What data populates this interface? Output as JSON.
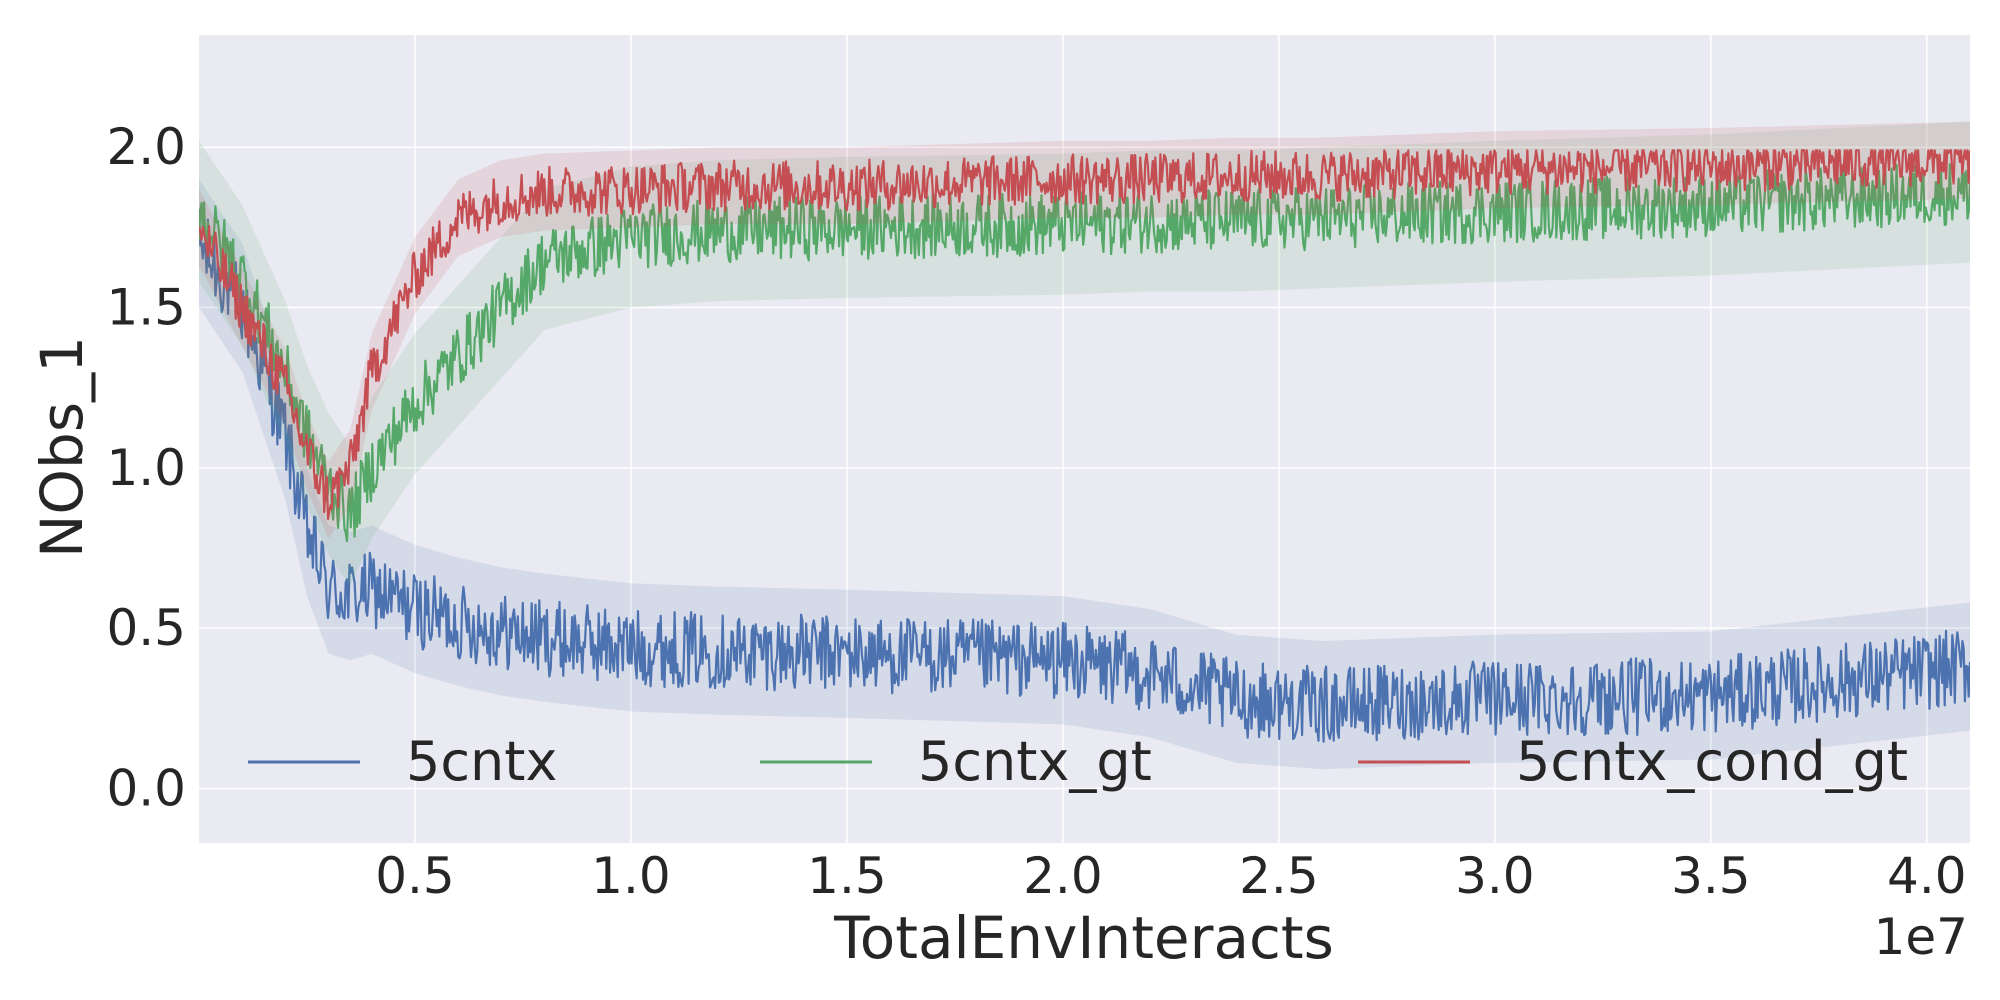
{
  "chart_data": {
    "type": "line",
    "xlabel": "TotalEnvInteracts",
    "ylabel": "NObs_1",
    "x_scale_label": "1e7",
    "xlim": [
      0.0,
      4.1
    ],
    "ylim": [
      -0.17,
      2.35
    ],
    "grid": true,
    "legend_position": "lower-center",
    "x_ticks": [
      0.5,
      1.0,
      1.5,
      2.0,
      2.5,
      3.0,
      3.5,
      4.0
    ],
    "x_tick_labels": [
      "0.5",
      "1.0",
      "1.5",
      "2.0",
      "2.5",
      "3.0",
      "3.5",
      "4.0"
    ],
    "y_ticks": [
      0.0,
      0.5,
      1.0,
      1.5,
      2.0
    ],
    "y_tick_labels": [
      "0.0",
      "0.5",
      "1.0",
      "1.5",
      "2.0"
    ],
    "x": [
      0.0,
      0.1,
      0.2,
      0.25,
      0.3,
      0.35,
      0.4,
      0.5,
      0.6,
      0.7,
      0.8,
      1.0,
      1.2,
      1.5,
      2.0,
      2.2,
      2.4,
      2.6,
      3.0,
      3.5,
      4.1
    ],
    "series": [
      {
        "name": "5cntx",
        "color": "#4c72b0",
        "values": [
          1.7,
          1.5,
          1.1,
          0.8,
          0.62,
          0.6,
          0.62,
          0.56,
          0.52,
          0.49,
          0.47,
          0.44,
          0.43,
          0.42,
          0.4,
          0.36,
          0.28,
          0.26,
          0.28,
          0.29,
          0.38
        ]
      },
      {
        "name": "5cntx_gt",
        "color": "#55a868",
        "values": [
          1.8,
          1.6,
          1.3,
          1.1,
          0.95,
          0.85,
          1.0,
          1.2,
          1.35,
          1.5,
          1.65,
          1.72,
          1.74,
          1.75,
          1.76,
          1.77,
          1.77,
          1.78,
          1.8,
          1.82,
          1.86
        ]
      },
      {
        "name": "5cntx_cond_gt",
        "color": "#c44e52",
        "values": [
          1.75,
          1.5,
          1.25,
          1.05,
          0.9,
          1.0,
          1.3,
          1.6,
          1.78,
          1.84,
          1.86,
          1.87,
          1.88,
          1.88,
          1.9,
          1.9,
          1.91,
          1.91,
          1.93,
          1.94,
          1.96
        ]
      }
    ]
  }
}
